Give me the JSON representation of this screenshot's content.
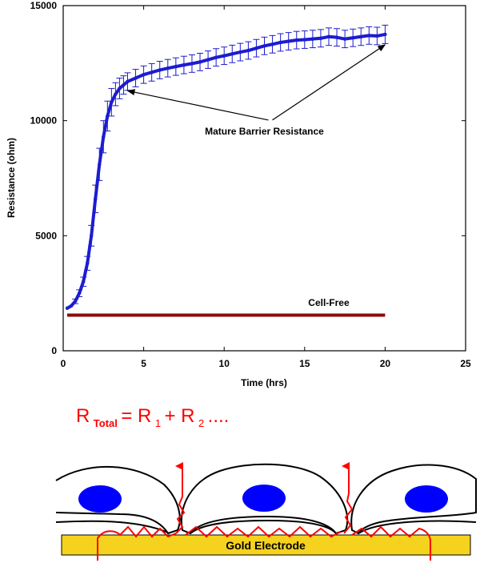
{
  "colors": {
    "mature_series": "#1c1cd0",
    "cell_free_series": "#8b0a0a",
    "annotation_arrow": "#000000",
    "formula": "#ff0000",
    "current_path": "#ff0000",
    "electrode": "#f5d21e",
    "nucleus": "#0000ff"
  },
  "chart_data": {
    "type": "line",
    "title": "",
    "xlabel": "Time (hrs)",
    "ylabel": "Resistance (ohm)",
    "xlim": [
      0,
      25
    ],
    "ylim": [
      0,
      15000
    ],
    "x_ticks": [
      0,
      5,
      10,
      15,
      20,
      25
    ],
    "y_ticks": [
      0,
      5000,
      10000,
      15000
    ],
    "grid": false,
    "legend": "none",
    "series": [
      {
        "x": [
          0.25,
          0.5,
          0.75,
          1.0,
          1.25,
          1.5,
          1.75,
          2.0,
          2.25,
          2.5,
          2.75,
          3.0,
          3.25,
          3.5,
          3.75,
          4.0,
          4.5,
          5.0,
          5.5,
          6.0,
          6.5,
          7.0,
          7.5,
          8.0,
          8.5,
          9.0,
          9.5,
          10.0,
          10.5,
          11.0,
          11.5,
          12.0,
          12.5,
          13.0,
          13.5,
          14.0,
          14.5,
          15.0,
          15.5,
          16.0,
          16.5,
          17.0,
          17.5,
          18.0,
          18.5,
          19.0,
          19.5,
          20.0
        ],
        "values": [
          1850,
          1950,
          2150,
          2500,
          3000,
          3800,
          5000,
          6600,
          8100,
          9300,
          10200,
          10800,
          11150,
          11400,
          11550,
          11700,
          11850,
          12000,
          12100,
          12200,
          12280,
          12350,
          12420,
          12480,
          12550,
          12650,
          12750,
          12820,
          12900,
          12980,
          13050,
          13150,
          13250,
          13320,
          13400,
          13450,
          13500,
          13520,
          13550,
          13580,
          13650,
          13620,
          13550,
          13600,
          13650,
          13700,
          13680,
          13750
        ],
        "error": [
          0,
          0,
          100,
          150,
          200,
          300,
          450,
          600,
          700,
          700,
          650,
          600,
          500,
          450,
          400,
          380,
          380,
          380,
          380,
          380,
          380,
          380,
          380,
          380,
          380,
          380,
          380,
          380,
          380,
          380,
          380,
          380,
          380,
          380,
          380,
          380,
          380,
          380,
          380,
          380,
          380,
          380,
          380,
          380,
          380,
          380,
          380,
          400
        ]
      },
      {
        "x": [
          0.25,
          20.0
        ],
        "values": [
          1550,
          1550
        ]
      }
    ],
    "annotations": [
      {
        "text": "Mature Barrier Resistance",
        "at": [
          12.5,
          9400
        ],
        "arrows_to": [
          [
            4.0,
            11300
          ],
          [
            20.0,
            13300
          ]
        ]
      },
      {
        "text": "Cell-Free",
        "at": [
          16.5,
          1950
        ]
      }
    ]
  },
  "diagram": {
    "formula": {
      "r": "R",
      "total_sub": "Total",
      "eq": "= R",
      "sub1": "1",
      "plus": " + R",
      "sub2": "2",
      "tail": " ...."
    },
    "electrode_label": "Gold Electrode"
  }
}
